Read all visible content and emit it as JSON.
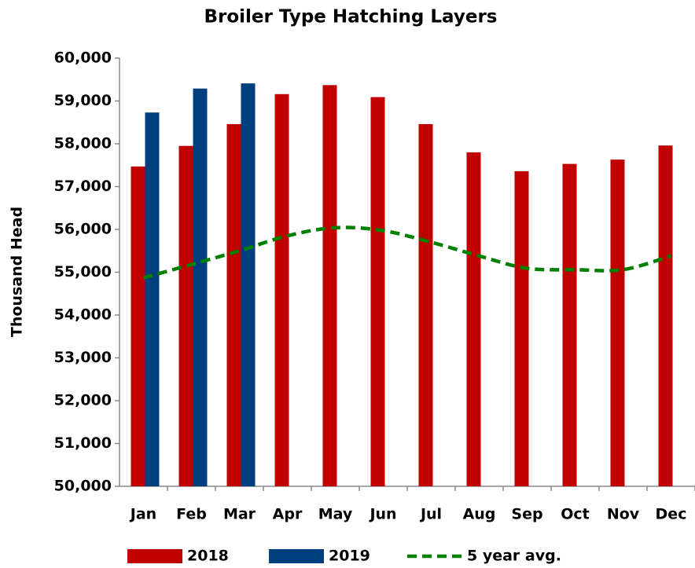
{
  "chart_data": {
    "type": "bar",
    "title": "Broiler Type Hatching Layers",
    "y_label": "Thousand Head",
    "categories": [
      "Jan",
      "Feb",
      "Mar",
      "Apr",
      "May",
      "Jun",
      "Jul",
      "Aug",
      "Sep",
      "Oct",
      "Nov",
      "Dec"
    ],
    "series": [
      {
        "name": "2018",
        "type": "bar",
        "color": "#c00000",
        "values": [
          57470,
          57950,
          58460,
          59160,
          59370,
          59090,
          58460,
          57800,
          57360,
          57530,
          57630,
          57960
        ]
      },
      {
        "name": "2019",
        "type": "bar",
        "color": "#003f7f",
        "values": [
          58730,
          59290,
          59410,
          null,
          null,
          null,
          null,
          null,
          null,
          null,
          null,
          null
        ]
      },
      {
        "name": "5 year avg.",
        "type": "line",
        "dashed": true,
        "color": "#008000",
        "values": [
          54870,
          55180,
          55500,
          55850,
          56040,
          55970,
          55700,
          55380,
          55090,
          55060,
          55060,
          55380
        ]
      }
    ],
    "ylim": [
      50000,
      60000
    ],
    "yticks": [
      {
        "value": 50000,
        "label": "50,000"
      },
      {
        "value": 51000,
        "label": "51,000"
      },
      {
        "value": 52000,
        "label": "52,000"
      },
      {
        "value": 53000,
        "label": "53,000"
      },
      {
        "value": 54000,
        "label": "54,000"
      },
      {
        "value": 55000,
        "label": "55,000"
      },
      {
        "value": 56000,
        "label": "56,000"
      },
      {
        "value": 57000,
        "label": "57,000"
      },
      {
        "value": 58000,
        "label": "58,000"
      },
      {
        "value": 59000,
        "label": "59,000"
      },
      {
        "value": 60000,
        "label": "60,000"
      }
    ],
    "grid": false,
    "legend": "bottom"
  }
}
